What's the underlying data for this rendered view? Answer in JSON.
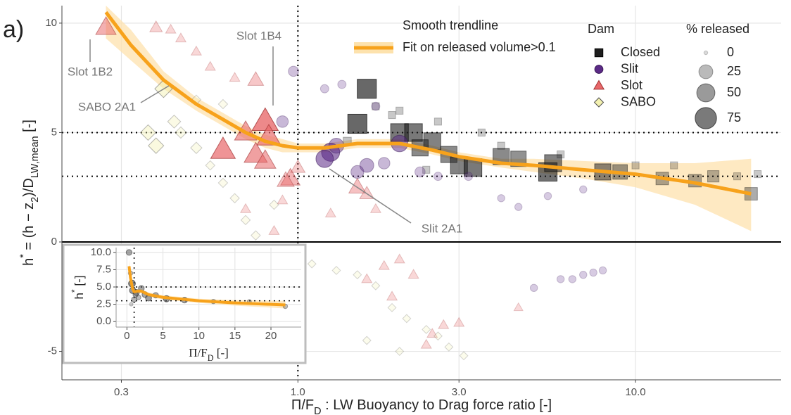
{
  "chart_data": [
    {
      "type": "scatter",
      "label": "a)",
      "xscale": "log",
      "grid": true,
      "xlabel": [
        "Π/F",
        "D",
        " : LW Buoyancy to Drag force ratio [-]"
      ],
      "ylabel": [
        "h",
        "*",
        " = (h − z",
        "2",
        ")/D",
        "LW,mean",
        " [-]"
      ],
      "xlim": [
        0.2,
        27
      ],
      "ylim": [
        -6.3,
        10.8
      ],
      "xticks": [
        0.3,
        {
          "value": 1,
          "label": "1.0"
        },
        {
          "value": 3,
          "label": "3.0"
        },
        {
          "value": 10,
          "label": "10.0"
        }
      ],
      "yticks": [
        -5,
        0,
        5,
        10
      ],
      "dotted_hlines": [
        5,
        3
      ],
      "dotted_vlines": [
        1
      ],
      "solid_hlines": [
        0
      ],
      "legend_title": "Dam",
      "series": [
        {
          "name": "Closed",
          "shape": "square",
          "color": "#1e1e1e",
          "stroke": "#000000",
          "x": [
            1.6,
            1.5,
            2.0,
            2.2,
            2.5,
            2.3,
            2.8,
            3.0,
            3.3,
            4.0,
            4.5,
            5.5,
            5.7,
            8,
            9,
            12,
            15,
            17,
            22,
            1.7,
            2.0,
            1.9,
            2.6,
            3.5,
            4.0,
            6,
            10,
            13,
            20,
            23,
            2.4,
            1.4
          ],
          "y": [
            7.0,
            5.4,
            5.0,
            5.0,
            4.6,
            4.3,
            4.0,
            3.5,
            3.4,
            3.9,
            3.8,
            3.2,
            3.6,
            3.2,
            3.2,
            2.9,
            2.8,
            3.0,
            2.2,
            6.2,
            6.0,
            5.8,
            5.5,
            5.0,
            4.4,
            4.0,
            3.5,
            3.5,
            3.0,
            3.1,
            3.3,
            4.6
          ],
          "size": [
            60,
            60,
            50,
            50,
            45,
            40,
            40,
            45,
            50,
            40,
            35,
            55,
            45,
            40,
            30,
            20,
            20,
            15,
            20,
            3,
            3,
            3,
            3,
            3,
            3,
            3,
            3,
            3,
            3,
            3,
            3,
            5
          ]
        },
        {
          "name": "Slit",
          "shape": "circle",
          "color": "#5b2a86",
          "stroke": "#3a1858",
          "x": [
            0.97,
            1.25,
            1.2,
            1.3,
            1.6,
            1.5,
            1.8,
            2.0,
            2.3,
            2.6,
            3.2,
            1.2,
            1.35,
            1.7,
            4.0,
            4.5,
            5.5,
            7.0,
            6,
            6.5,
            7,
            7.5,
            8,
            5,
            0.9
          ],
          "y": [
            7.8,
            4.1,
            3.8,
            4.4,
            3.5,
            3.2,
            3.6,
            4.5,
            3.2,
            3.0,
            3.0,
            7.0,
            7.2,
            6.2,
            2.0,
            1.6,
            2.1,
            2.4,
            -1.7,
            -1.7,
            -1.5,
            -1.4,
            -1.3,
            -2.1,
            5.5
          ],
          "size": [
            10,
            50,
            45,
            30,
            25,
            20,
            15,
            40,
            10,
            5,
            5,
            5,
            5,
            5,
            3,
            3,
            3,
            3,
            3,
            3,
            3,
            3,
            3,
            3,
            15
          ]
        },
        {
          "name": "Slot",
          "shape": "triangle",
          "color": "#e8686a",
          "stroke": "#a03030",
          "x": [
            0.27,
            0.38,
            0.42,
            0.45,
            0.5,
            0.55,
            0.65,
            0.75,
            0.8,
            0.82,
            0.75,
            0.8,
            0.6,
            0.7,
            0.95,
            0.92,
            1.0,
            1.5,
            1.6,
            1.7,
            1.25,
            0.9,
            0.85,
            0.7,
            1.8,
            2.0,
            2.2,
            1.9,
            2.7,
            2.5,
            3.0,
            2.4,
            4.5,
            1.6
          ],
          "y": [
            9.8,
            9.8,
            9.7,
            9.3,
            8.7,
            8.0,
            7.5,
            7.4,
            5.5,
            4.8,
            4.0,
            3.7,
            4.2,
            5.0,
            2.9,
            2.8,
            3.4,
            2.5,
            2.2,
            1.5,
            1.3,
            1.9,
            0.5,
            1.5,
            -1.1,
            -0.8,
            -1.5,
            -2.5,
            -3.8,
            -4.2,
            -3.7,
            -4.7,
            -3.0,
            -1.7
          ],
          "size": [
            40,
            10,
            5,
            5,
            5,
            5,
            5,
            20,
            75,
            60,
            55,
            45,
            65,
            50,
            35,
            25,
            15,
            25,
            15,
            5,
            5,
            5,
            5,
            5,
            5,
            5,
            5,
            5,
            5,
            5,
            5,
            5,
            3,
            5
          ]
        },
        {
          "name": "SABO",
          "shape": "diamond",
          "color": "#f3f1b0",
          "stroke": "#4d4d4d",
          "x": [
            0.4,
            0.36,
            0.38,
            0.43,
            0.45,
            0.5,
            0.55,
            0.6,
            0.65,
            0.7,
            0.85,
            0.75,
            0.9,
            1.1,
            1.3,
            1.5,
            1.7,
            1.9,
            2.1,
            2.4,
            2.6,
            2.8,
            3.1,
            1.6,
            2.0,
            0.5,
            0.6
          ],
          "y": [
            7.0,
            5.0,
            4.4,
            5.5,
            5.0,
            4.3,
            3.5,
            2.7,
            2.0,
            1.0,
            1.7,
            0.3,
            -0.8,
            -1.0,
            -1.3,
            -1.5,
            -2.0,
            -3.0,
            -3.5,
            -4.0,
            -4.3,
            -4.8,
            -5.2,
            -4.5,
            -5.0,
            6.5,
            6.3
          ],
          "size": [
            35,
            25,
            25,
            15,
            10,
            10,
            5,
            5,
            5,
            5,
            5,
            5,
            3,
            3,
            3,
            3,
            3,
            3,
            3,
            3,
            3,
            3,
            3,
            3,
            3,
            5,
            5
          ]
        }
      ],
      "size_legend": {
        "title": "% released",
        "values": [
          0,
          25,
          50,
          75
        ]
      },
      "trend": {
        "title": "Smooth trendline",
        "name": "Fit on released volume>0.1",
        "color": "#f7a21b",
        "band_color": "#fde2ad",
        "x": [
          0.27,
          0.32,
          0.4,
          0.5,
          0.6,
          0.7,
          0.8,
          0.9,
          1.0,
          1.2,
          1.5,
          2.0,
          2.5,
          3.0,
          4.0,
          5.0,
          7.0,
          10.0,
          15.0,
          22.0
        ],
        "y": [
          10.5,
          9.0,
          7.4,
          6.3,
          5.6,
          5.0,
          4.6,
          4.4,
          4.3,
          4.3,
          4.5,
          4.5,
          4.2,
          3.9,
          3.6,
          3.5,
          3.3,
          3.1,
          2.7,
          2.2
        ],
        "lower": [
          9.3,
          8.3,
          7.0,
          6.0,
          5.3,
          4.7,
          4.3,
          4.1,
          4.1,
          4.1,
          4.3,
          4.3,
          4.0,
          3.7,
          3.4,
          3.2,
          2.9,
          2.5,
          1.7,
          0.5
        ],
        "upper": [
          10.8,
          9.7,
          7.8,
          6.6,
          5.9,
          5.3,
          4.9,
          4.7,
          4.5,
          4.5,
          4.7,
          4.7,
          4.4,
          4.1,
          3.8,
          3.8,
          3.7,
          3.6,
          3.6,
          3.8
        ]
      },
      "annotations": [
        {
          "text": "Slot 1B2"
        },
        {
          "text": "SABO 2A1"
        },
        {
          "text": "Slot 1B4"
        },
        {
          "text": "Slit 2A1"
        }
      ]
    },
    {
      "type": "scatter",
      "xscale": "linear",
      "grid": true,
      "xlabel": [
        "Π/F",
        "D",
        " [-]"
      ],
      "ylabel": [
        "h",
        "*",
        " [-]"
      ],
      "xlim": [
        -1.5,
        24.2
      ],
      "ylim": [
        -0.8,
        10.7
      ],
      "xticks": [
        0,
        5,
        10,
        15,
        20
      ],
      "yticks": [
        {
          "value": 0,
          "label": "0.0"
        },
        {
          "value": 2.5,
          "label": "2.5"
        },
        {
          "value": 5,
          "label": "5.0"
        },
        {
          "value": 7.5,
          "label": "7.5"
        },
        {
          "value": 10,
          "label": "10.0"
        }
      ],
      "dotted_hlines": [
        5,
        3
      ],
      "dotted_vlines": [
        1
      ],
      "series": [
        {
          "shape": "circle",
          "color": "#555555",
          "stroke": "#222222",
          "x": [
            0.3,
            0.5,
            0.7,
            0.8,
            1.0,
            1.3,
            1.6,
            2.0,
            2.5,
            3.0,
            4.0,
            5.5,
            8,
            12,
            17,
            22,
            0.6,
            1.2
          ],
          "y": [
            10,
            7,
            5.5,
            4.5,
            3.2,
            4.2,
            3.5,
            4.8,
            3.9,
            3.4,
            3.8,
            3.3,
            3.1,
            2.9,
            2.9,
            2.2,
            2.5,
            3.9
          ],
          "size": [
            40,
            20,
            60,
            50,
            30,
            45,
            25,
            40,
            40,
            45,
            35,
            50,
            40,
            20,
            15,
            20,
            10,
            30
          ]
        }
      ],
      "trend": {
        "color": "#f7a21b",
        "band_color": "#fde2ad",
        "x": [
          0.3,
          0.5,
          0.8,
          1.0,
          1.5,
          2.0,
          3.0,
          5.0,
          10.0,
          15.0,
          22.0
        ],
        "y": [
          8.0,
          6.3,
          4.7,
          4.3,
          4.4,
          4.4,
          3.9,
          3.5,
          3.0,
          2.7,
          2.4
        ],
        "lower": [
          7.0,
          5.8,
          4.3,
          4.0,
          4.1,
          4.1,
          3.6,
          3.2,
          2.7,
          2.3,
          1.9
        ],
        "upper": [
          9.0,
          6.8,
          5.1,
          4.6,
          4.7,
          4.7,
          4.2,
          3.8,
          3.3,
          3.1,
          3.0
        ]
      }
    }
  ]
}
